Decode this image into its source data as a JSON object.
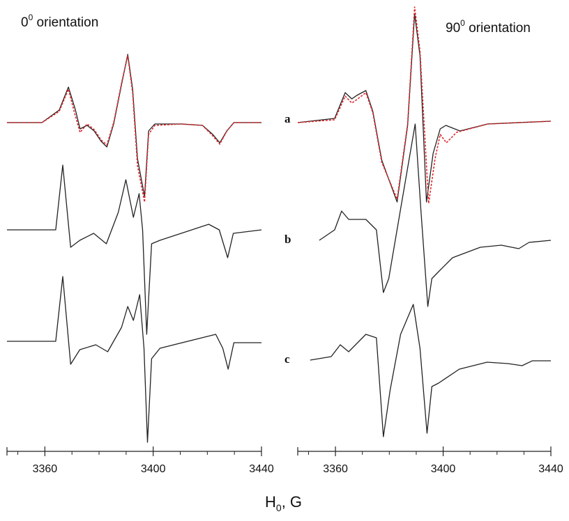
{
  "chart_data": [
    {
      "type": "line",
      "title": {
        "base": "0",
        "sup": "0",
        "rest": " orientation"
      },
      "xlabel": {
        "main": "H",
        "sub": "0",
        "rest": ", G"
      },
      "annotations": [
        "a",
        "b",
        "c"
      ],
      "xlim": [
        3346,
        3440
      ],
      "ylim": [
        0,
        648
      ],
      "xticks": [
        3360,
        3400,
        3440
      ],
      "xminor_ticks": [
        3350,
        3370,
        3380,
        3390,
        3410,
        3420,
        3430
      ],
      "series": [
        {
          "color": "#222222",
          "x": [
            3346,
            3358.9,
            3365.3,
            3368.7,
            3371.3,
            3373,
            3375.6,
            3378.2,
            3380.8,
            3382.9,
            3385.4,
            3388.5,
            3390.6,
            3392.4,
            3394.2,
            3396.8,
            3398.3,
            3400.6,
            3410.4,
            3418.2,
            3422,
            3424.6,
            3427.2,
            3429.8,
            3440
          ],
          "values": [
            472,
            472,
            490,
            523,
            490,
            463,
            468,
            460,
            445,
            437,
            470,
            530,
            570,
            520,
            420,
            366,
            460,
            470,
            470,
            468,
            455,
            443,
            460,
            472,
            472
          ]
        },
        {
          "color": "#e0262a",
          "dashed": true,
          "x": [
            3346,
            3358.9,
            3365.3,
            3368.7,
            3371,
            3373,
            3375.6,
            3378.2,
            3380.8,
            3382.9,
            3385.4,
            3388.5,
            3390.6,
            3392.4,
            3394.2,
            3396.8,
            3398.3,
            3400.6,
            3410.4,
            3418.2,
            3422,
            3424.6,
            3427.2,
            3429.8,
            3440
          ],
          "values": [
            472,
            472,
            488,
            520,
            485,
            458,
            470,
            462,
            447,
            440,
            472,
            532,
            568,
            515,
            410,
            358,
            455,
            468,
            470,
            468,
            453,
            441,
            460,
            472,
            472
          ]
        },
        {
          "color": "#222222",
          "x": [
            3346,
            3364,
            3366.6,
            3369.5,
            3372.9,
            3378,
            3382.7,
            3387.1,
            3389.9,
            3392.7,
            3394.8,
            3396.1,
            3397.6,
            3399.4,
            3402.5,
            3420.5,
            3424.4,
            3427.5,
            3429.6,
            3440
          ],
          "values": [
            318,
            318,
            411,
            293,
            303,
            313,
            298,
            343,
            390,
            336,
            370,
            318,
            168,
            298,
            303,
            326,
            318,
            278,
            313,
            318
          ]
        },
        {
          "color": "#222222",
          "x": [
            3346,
            3364,
            3366.6,
            3369.5,
            3372.9,
            3378.8,
            3383.2,
            3388.3,
            3390.6,
            3392.7,
            3395,
            3396.6,
            3397.9,
            3399.4,
            3402.5,
            3423.1,
            3425.7,
            3427.7,
            3429.8,
            3440
          ],
          "values": [
            158,
            158,
            251,
            125,
            146,
            153,
            143,
            178,
            208,
            188,
            225,
            148,
            13,
            133,
            148,
            168,
            148,
            118,
            156,
            156
          ]
        }
      ]
    },
    {
      "type": "line",
      "title": {
        "base": "90",
        "sup": "0",
        "rest": " orientation"
      },
      "xlim": [
        3346,
        3440
      ],
      "ylim": [
        0,
        648
      ],
      "xticks": [
        3360,
        3400,
        3440
      ],
      "xminor_ticks": [
        3350,
        3370,
        3380,
        3390,
        3410,
        3420,
        3430
      ],
      "series": [
        {
          "color": "#222222",
          "x": [
            3346,
            3359.7,
            3363.6,
            3366.1,
            3367.9,
            3371.3,
            3373.9,
            3377.2,
            3382.9,
            3386.8,
            3389.4,
            3391.4,
            3393.8,
            3396.3,
            3398.9,
            3401,
            3406.2,
            3416.5,
            3440
          ],
          "values": [
            472,
            478,
            515,
            506,
            511,
            518,
            488,
            418,
            358,
            468,
            628,
            568,
            358,
            428,
            463,
            468,
            460,
            470,
            474
          ]
        },
        {
          "color": "#e0262a",
          "dashed": true,
          "x": [
            3346,
            3359.7,
            3363.6,
            3366.1,
            3367.9,
            3371.3,
            3373.9,
            3377.2,
            3382.9,
            3386.8,
            3389.4,
            3391.4,
            3394.6,
            3397,
            3398.9,
            3401.2,
            3405,
            3416.5,
            3440
          ],
          "values": [
            472,
            476,
            510,
            500,
            505,
            515,
            486,
            415,
            362,
            470,
            638,
            575,
            356,
            420,
            455,
            443,
            458,
            470,
            474
          ]
        },
        {
          "color": "#222222",
          "x": [
            3354,
            3359.7,
            3362.3,
            3364.9,
            3371.3,
            3375.2,
            3377.8,
            3379.8,
            3384.2,
            3389.6,
            3391.7,
            3394.3,
            3395.8,
            3398.3,
            3403.5,
            3413.8,
            3421.6,
            3428.1,
            3431.9,
            3440
          ],
          "values": [
            303,
            318,
            345,
            333,
            333,
            318,
            228,
            248,
            348,
            470,
            348,
            208,
            248,
            258,
            278,
            293,
            296,
            291,
            300,
            303
          ]
        },
        {
          "color": "#222222",
          "x": [
            3350.6,
            3358.4,
            3361.8,
            3364.9,
            3371.3,
            3375.2,
            3377.8,
            3380.3,
            3384.2,
            3388.9,
            3391.4,
            3394,
            3395.8,
            3398.3,
            3406,
            3416.3,
            3424.1,
            3429.3,
            3433.1,
            3440
          ],
          "values": [
            131,
            136,
            153,
            143,
            168,
            163,
            21,
            88,
            168,
            211,
            148,
            26,
            93,
            98,
            118,
            128,
            126,
            123,
            130,
            130
          ]
        }
      ]
    }
  ]
}
